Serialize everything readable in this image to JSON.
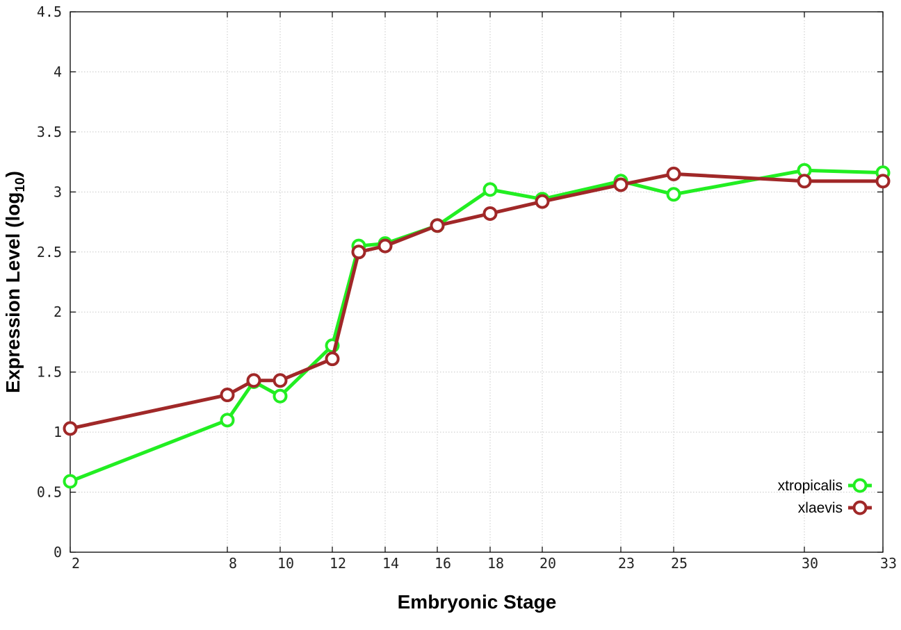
{
  "chart_data": {
    "type": "line",
    "title": "",
    "xlabel": "Embryonic Stage",
    "ylabel_main": "Expression Level (log",
    "ylabel_sub": "10",
    "ylabel_close": ")",
    "xlim": [
      2,
      33
    ],
    "ylim": [
      0,
      4.5
    ],
    "x_ticks": [
      2,
      8,
      10,
      12,
      14,
      16,
      18,
      20,
      23,
      25,
      30,
      33
    ],
    "y_ticks": [
      0,
      0.5,
      1,
      1.5,
      2,
      2.5,
      3,
      3.5,
      4,
      4.5
    ],
    "y_tick_labels": [
      "0",
      "0.5",
      "1",
      "1.5",
      "2",
      "2.5",
      "3",
      "3.5",
      "4",
      "4.5"
    ],
    "x_scale": "category",
    "grid": true,
    "legend_position": "bottom-right",
    "series": [
      {
        "name": "xtropicalis",
        "color": "#22ee22",
        "x": [
          2,
          8,
          9,
          10,
          12,
          13,
          14,
          16,
          18,
          20,
          23,
          25,
          30,
          33
        ],
        "values": [
          0.59,
          1.1,
          1.42,
          1.3,
          1.72,
          2.55,
          2.57,
          2.72,
          3.02,
          2.94,
          3.09,
          2.98,
          3.18,
          3.16
        ]
      },
      {
        "name": "xlaevis",
        "color": "#a02828",
        "x": [
          2,
          8,
          9,
          10,
          12,
          13,
          14,
          16,
          18,
          20,
          23,
          25,
          30,
          33
        ],
        "values": [
          1.03,
          1.31,
          1.43,
          1.43,
          1.61,
          2.5,
          2.55,
          2.72,
          2.82,
          2.92,
          3.06,
          3.15,
          3.09,
          3.09
        ]
      }
    ]
  }
}
